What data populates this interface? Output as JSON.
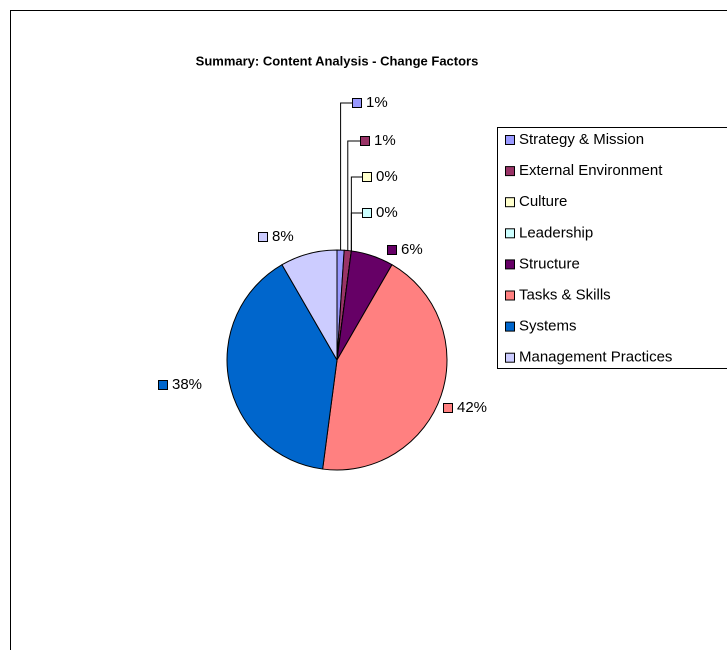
{
  "chart_data": {
    "type": "pie",
    "title": "Summary: Content Analysis - Change Factors",
    "categories": [
      "Strategy & Mission",
      "External Environment",
      "Culture",
      "Leadership",
      "Structure",
      "Tasks & Skills",
      "Systems",
      "Management Practices"
    ],
    "values": [
      1,
      1,
      0,
      0,
      6,
      42,
      38,
      8
    ],
    "value_labels": [
      "1%",
      "1%",
      "0%",
      "0%",
      "6%",
      "42%",
      "38%",
      "8%"
    ],
    "colors": [
      "#9999ff",
      "#993366",
      "#ffffcc",
      "#ccffff",
      "#660066",
      "#ff8080",
      "#0066cc",
      "#ccccff"
    ],
    "legend": "right"
  }
}
